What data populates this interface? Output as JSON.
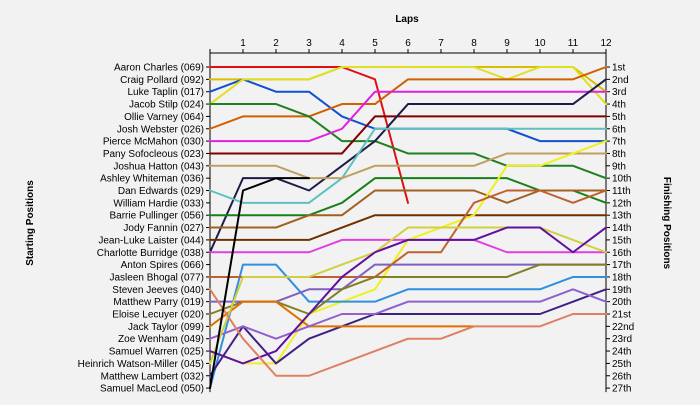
{
  "chart_data": {
    "type": "line",
    "x_title": "Laps",
    "y_left_title": "Starting Positions",
    "y_right_title": "Finishing Positions",
    "laps": [
      1,
      2,
      3,
      4,
      5,
      6,
      7,
      8,
      9,
      10,
      11,
      12
    ],
    "x_range": [
      0,
      12
    ],
    "y_range": [
      1,
      27
    ],
    "drivers": [
      "Aaron Charles (069)",
      "Craig Pollard (092)",
      "Luke Taplin (017)",
      "Jacob Stilp (024)",
      "Ollie Varney (064)",
      "Josh Webster (026)",
      "Pierce McMahon (030)",
      "Pany Sofocleous (023)",
      "Joshua Hatton (043)",
      "Ashley Whiteman (036)",
      "Dan Edwards (029)",
      "William Hardie (033)",
      "Barrie Pullinger (056)",
      "Jody Fannin (027)",
      "Jean-Luke Laister (044)",
      "Charlotte Burridge (038)",
      "Anton Spires (066)",
      "Jasleen Bhogal (077)",
      "Steven Jeeves (040)",
      "Matthew Parry (019)",
      "Eloise Lecuyer (020)",
      "Jack Taylor (099)",
      "Zoe Wenham (049)",
      "Samuel Warren (025)",
      "Heinrich Watson-Miller (045)",
      "Matthew Lambert (032)",
      "Samuel MacLeod (050)"
    ],
    "finishing": [
      "1st",
      "2nd",
      "3rd",
      "4th",
      "5th",
      "6th",
      "7th",
      "8th",
      "9th",
      "10th",
      "11th",
      "12th",
      "13th",
      "14th",
      "15th",
      "16th",
      "17th",
      "18th",
      "19th",
      "20th",
      "21st",
      "22nd",
      "23rd",
      "24th",
      "25th",
      "26th",
      "27th"
    ],
    "series": [
      {
        "color": "#e01010",
        "positions": [
          1,
          1,
          1,
          1,
          1,
          2,
          12
        ]
      },
      {
        "color": "#d8c000",
        "positions": [
          2,
          2,
          2,
          2,
          1,
          1,
          1,
          1,
          1,
          1,
          1,
          1,
          3
        ]
      },
      {
        "color": "#1050d0",
        "positions": [
          3,
          2,
          3,
          3,
          5,
          6,
          6,
          6,
          6,
          6,
          7,
          7,
          7
        ]
      },
      {
        "color": "#e0e020",
        "positions": [
          4,
          2,
          2,
          2,
          1,
          1,
          1,
          1,
          1,
          2,
          1,
          1,
          4
        ]
      },
      {
        "color": "#d06000",
        "positions": [
          6,
          5,
          5,
          5,
          4,
          4,
          2,
          2,
          2,
          2,
          2,
          2,
          1
        ]
      },
      {
        "color": "#208020",
        "positions": [
          4,
          4,
          4,
          5,
          7,
          7,
          8,
          8,
          8,
          9,
          9,
          9,
          10
        ]
      },
      {
        "color": "#e020e0",
        "positions": [
          7,
          7,
          7,
          7,
          6,
          3,
          3,
          3,
          3,
          3,
          3,
          3,
          3
        ]
      },
      {
        "color": "#800000",
        "positions": [
          8,
          8,
          8,
          8,
          8,
          5,
          5,
          5,
          5,
          5,
          5,
          5,
          5
        ]
      },
      {
        "color": "#1c1c4c",
        "positions": [
          16,
          10,
          10,
          11,
          9,
          7,
          4,
          4,
          4,
          4,
          4,
          4,
          2
        ]
      },
      {
        "color": "#60c0c0",
        "positions": [
          11,
          12,
          12,
          12,
          10,
          6,
          6,
          6,
          6,
          6,
          6,
          6,
          6
        ]
      },
      {
        "color": "#c0a060",
        "positions": [
          9,
          9,
          9,
          10,
          10,
          9,
          9,
          9,
          9,
          8,
          8,
          8,
          8
        ]
      },
      {
        "color": "#188018",
        "positions": [
          13,
          13,
          13,
          13,
          12,
          10,
          10,
          10,
          10,
          10,
          11,
          11,
          12
        ]
      },
      {
        "color": "#a06020",
        "positions": [
          14,
          14,
          14,
          13,
          13,
          11,
          11,
          11,
          11,
          12,
          11,
          11,
          11
        ]
      },
      {
        "color": "#703000",
        "positions": [
          15,
          15,
          15,
          15,
          14,
          13,
          13,
          13,
          13,
          13,
          13,
          13,
          13
        ]
      },
      {
        "color": "#e040e0",
        "positions": [
          16,
          16,
          16,
          16,
          15,
          15,
          15,
          15,
          15,
          16,
          16,
          16,
          16
        ]
      },
      {
        "color": "#f0f020",
        "positions": [
          24,
          25,
          25,
          21,
          20,
          19,
          15,
          14,
          13,
          9,
          9,
          8,
          7
        ]
      },
      {
        "color": "#3090e0",
        "positions": [
          27,
          17,
          17,
          20,
          20,
          20,
          19,
          19,
          19,
          19,
          19,
          18,
          18
        ]
      },
      {
        "color": "#c06030",
        "positions": [
          18,
          18,
          18,
          18,
          18,
          18,
          16,
          16,
          12,
          11,
          11,
          12,
          11
        ]
      },
      {
        "color": "#8060c0",
        "positions": [
          20,
          20,
          20,
          19,
          19,
          17,
          17,
          17,
          17,
          17,
          17,
          17,
          17
        ]
      },
      {
        "color": "#808020",
        "positions": [
          21,
          20,
          20,
          21,
          19,
          18,
          18,
          18,
          18,
          18,
          17,
          17,
          17
        ]
      },
      {
        "color": "#402080",
        "positions": [
          26,
          22,
          25,
          23,
          22,
          21,
          21,
          21,
          21,
          21,
          21,
          20,
          19
        ]
      },
      {
        "color": "#e07000",
        "positions": [
          22,
          20,
          20,
          22,
          22,
          22,
          22,
          22,
          22
        ]
      },
      {
        "color": "#9060d0",
        "positions": [
          23,
          22,
          23,
          22,
          21,
          21,
          20,
          20,
          20,
          20,
          20,
          19,
          20
        ]
      },
      {
        "color": "#d0d040",
        "positions": [
          25,
          18,
          18,
          18,
          17,
          16,
          14,
          14,
          14,
          14,
          14,
          15,
          16
        ]
      },
      {
        "color": "#6010a0",
        "positions": [
          24,
          25,
          24,
          21,
          18,
          16,
          15,
          15,
          15,
          14,
          14,
          16,
          14
        ]
      },
      {
        "color": "#e08060",
        "positions": [
          19,
          23,
          26,
          26,
          25,
          24,
          23,
          23,
          22,
          22,
          22,
          21,
          21
        ]
      },
      {
        "color": "#000000",
        "positions": [
          27,
          11,
          10,
          10
        ]
      }
    ]
  }
}
